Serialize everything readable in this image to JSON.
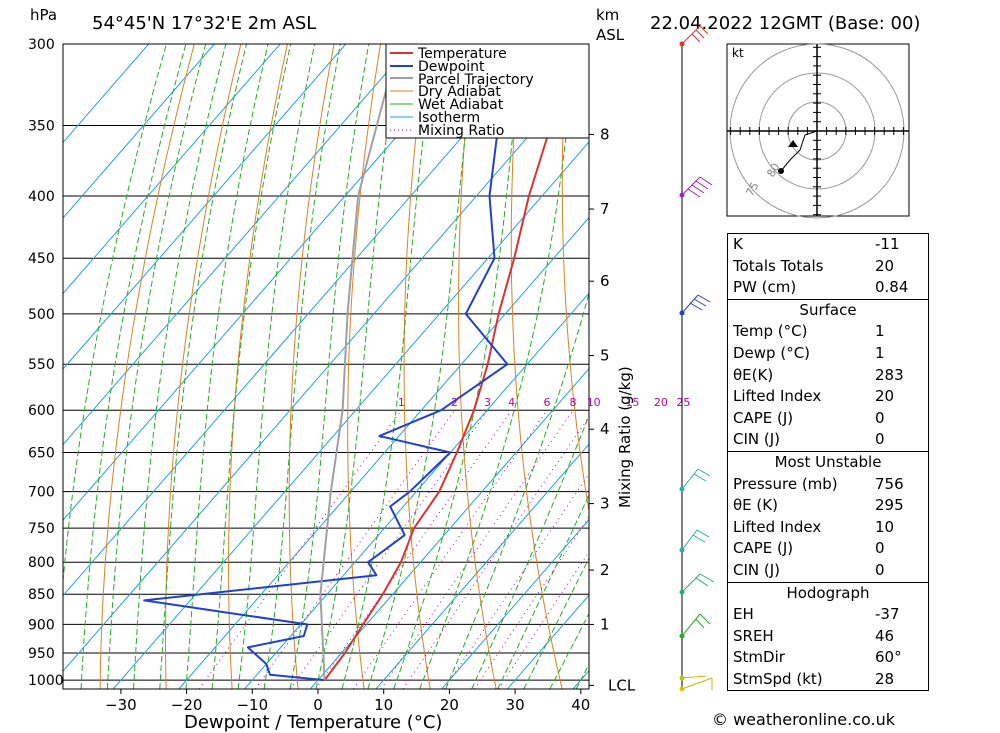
{
  "header": {
    "location": "54°45'N 17°32'E 2m ASL",
    "datetime": "22.04.2022 12GMT (Base: 00)",
    "hpa_label": "hPa",
    "km_label": "km",
    "asl_label": "ASL"
  },
  "legend": [
    "Temperature",
    "Dewpoint",
    "Parcel Trajectory",
    "Dry Adiabat",
    "Wet Adiabat",
    "Isotherm",
    "Mixing Ratio"
  ],
  "colors": {
    "temperature": "#e03030",
    "dewpoint": "#2040d0",
    "parcel": "#a0a0a0",
    "dry_adiabat": "#e08020",
    "wet_adiabat": "#20b020",
    "isotherm": "#20a0e0",
    "mixing_ratio": "#c000a0"
  },
  "chart_data": {
    "type": "line",
    "title": "",
    "xlabel": "Dewpoint / Temperature (°C)",
    "ylabel": "hPa",
    "right_axis_label": "Mixing Ratio (g/kg)",
    "x_ticks": [
      "−30",
      "−20",
      "−10",
      "0",
      "10",
      "20",
      "30",
      "40"
    ],
    "y_ticks": [
      "300",
      "350",
      "400",
      "450",
      "500",
      "550",
      "600",
      "650",
      "700",
      "750",
      "800",
      "850",
      "900",
      "950",
      "1000"
    ],
    "km_ticks": [
      "8",
      "7",
      "6",
      "5",
      "4",
      "3",
      "2",
      "1",
      "LCL"
    ],
    "mixing_ratio_labels": [
      "1",
      "2",
      "3",
      "4",
      "6",
      "8",
      "10",
      "15",
      "20",
      "25"
    ],
    "series": [
      {
        "name": "Temperature",
        "points": [
          {
            "p": 1000,
            "t": 1
          },
          {
            "p": 950,
            "t": 0.5
          },
          {
            "p": 900,
            "t": -0.5
          },
          {
            "p": 850,
            "t": -1.5
          },
          {
            "p": 800,
            "t": -3
          },
          {
            "p": 750,
            "t": -5.5
          },
          {
            "p": 700,
            "t": -6.5
          },
          {
            "p": 650,
            "t": -9
          },
          {
            "p": 600,
            "t": -12
          },
          {
            "p": 550,
            "t": -16
          },
          {
            "p": 500,
            "t": -21
          },
          {
            "p": 450,
            "t": -26
          },
          {
            "p": 400,
            "t": -32
          },
          {
            "p": 350,
            "t": -38
          },
          {
            "p": 300,
            "t": -46
          }
        ]
      },
      {
        "name": "Dewpoint",
        "points": [
          {
            "p": 1000,
            "t": 1
          },
          {
            "p": 990,
            "t": -8
          },
          {
            "p": 970,
            "t": -10
          },
          {
            "p": 940,
            "t": -15
          },
          {
            "p": 920,
            "t": -8
          },
          {
            "p": 900,
            "t": -9
          },
          {
            "p": 860,
            "t": -37
          },
          {
            "p": 820,
            "t": -5
          },
          {
            "p": 800,
            "t": -8
          },
          {
            "p": 760,
            "t": -6
          },
          {
            "p": 720,
            "t": -12
          },
          {
            "p": 700,
            "t": -11
          },
          {
            "p": 650,
            "t": -10
          },
          {
            "p": 630,
            "t": -23
          },
          {
            "p": 600,
            "t": -17
          },
          {
            "p": 550,
            "t": -13
          },
          {
            "p": 500,
            "t": -26
          },
          {
            "p": 450,
            "t": -29
          },
          {
            "p": 400,
            "t": -38
          },
          {
            "p": 350,
            "t": -46
          },
          {
            "p": 320,
            "t": -52
          },
          {
            "p": 300,
            "t": -55
          }
        ]
      },
      {
        "name": "Parcel Trajectory",
        "points": [
          {
            "p": 1000,
            "t": 1
          },
          {
            "p": 850,
            "t": -11
          },
          {
            "p": 700,
            "t": -23
          },
          {
            "p": 600,
            "t": -32
          },
          {
            "p": 500,
            "t": -44
          },
          {
            "p": 400,
            "t": -58
          },
          {
            "p": 300,
            "t": -72
          }
        ]
      }
    ],
    "hodograph": {
      "units_label": "kt",
      "ring_labels": [
        "75",
        "80"
      ]
    }
  },
  "stats": {
    "k_label": "K",
    "k_value": "-11",
    "tt_label": "Totals Totals",
    "tt_value": "20",
    "pw_label": "PW (cm)",
    "pw_value": "0.84",
    "surface_title": "Surface",
    "s_temp_label": "Temp (°C)",
    "s_temp_value": "1",
    "s_dewp_label": "Dewp (°C)",
    "s_dewp_value": "1",
    "s_thetae_label": "θE(K)",
    "s_thetae_value": "283",
    "s_li_label": "Lifted Index",
    "s_li_value": "20",
    "s_cape_label": "CAPE (J)",
    "s_cape_value": "0",
    "s_cin_label": "CIN (J)",
    "s_cin_value": "0",
    "mu_title": "Most Unstable",
    "mu_pres_label": "Pressure (mb)",
    "mu_pres_value": "756",
    "mu_thetae_label": "θE (K)",
    "mu_thetae_value": "295",
    "mu_li_label": "Lifted Index",
    "mu_li_value": "10",
    "mu_cape_label": "CAPE (J)",
    "mu_cape_value": "0",
    "mu_cin_label": "CIN (J)",
    "mu_cin_value": "0",
    "hodo_title": "Hodograph",
    "eh_label": "EH",
    "eh_value": "-37",
    "sreh_label": "SREH",
    "sreh_value": "46",
    "stmdir_label": "StmDir",
    "stmdir_value": "60°",
    "stmspd_label": "StmSpd (kt)",
    "stmspd_value": "28"
  },
  "credit": "© weatheronline.co.uk"
}
